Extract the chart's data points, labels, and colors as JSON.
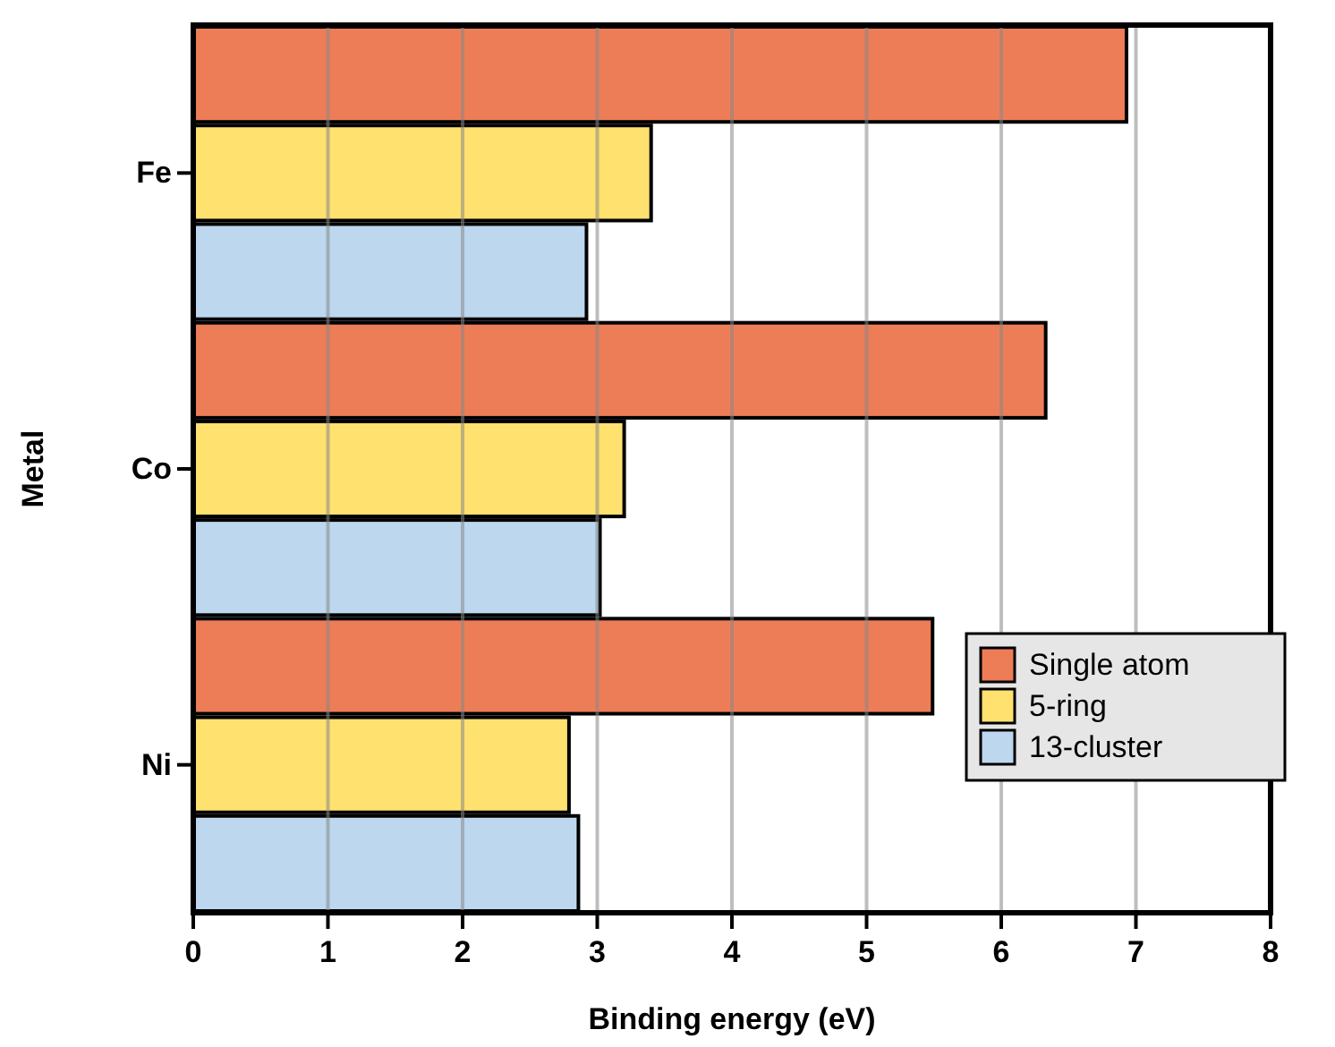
{
  "chart_data": {
    "type": "bar",
    "orientation": "horizontal",
    "xlabel": "Binding energy (eV)",
    "ylabel": "Metal",
    "categories": [
      "Fe",
      "Co",
      "Ni"
    ],
    "series": [
      {
        "name": "Single atom",
        "color": "#ed7d57",
        "values": [
          6.93,
          6.33,
          5.49
        ]
      },
      {
        "name": "5-ring",
        "color": "#fee16f",
        "values": [
          3.4,
          3.2,
          2.79
        ]
      },
      {
        "name": "13-cluster",
        "color": "#bdd7ee",
        "values": [
          2.92,
          3.02,
          2.86
        ]
      }
    ],
    "xlim": [
      0,
      8
    ],
    "xticks": [
      0,
      1,
      2,
      3,
      4,
      5,
      6,
      7,
      8
    ],
    "grid": "x",
    "legend": "bottom right"
  }
}
